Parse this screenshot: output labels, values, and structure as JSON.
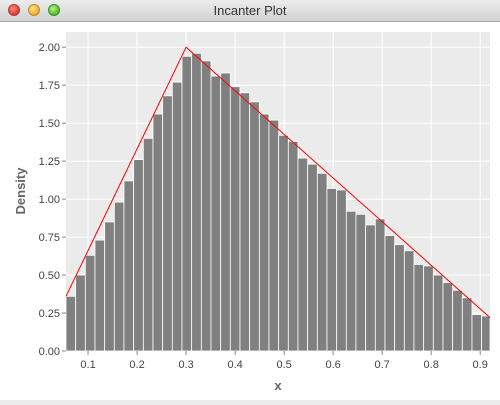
{
  "window": {
    "title": "Incanter Plot"
  },
  "colors": {
    "plot_background": "#ebebeb",
    "grid": "#ffffff",
    "bar_fill": "#808080",
    "bar_stroke": "#ffffff",
    "density_line": "#ff0000",
    "tick_text": "#444444",
    "axis_label": "#666666"
  },
  "chart_data": {
    "type": "bar",
    "title": "",
    "xlabel": "x",
    "ylabel": "Density",
    "xlim": [
      0.055,
      0.92
    ],
    "ylim": [
      0,
      2.1
    ],
    "grid": true,
    "x_ticks": [
      0.1,
      0.2,
      0.3,
      0.4,
      0.5,
      0.6,
      0.7,
      0.8,
      0.9
    ],
    "x_tick_labels": [
      "0.1",
      "0.2",
      "0.3",
      "0.4",
      "0.5",
      "0.6",
      "0.7",
      "0.8",
      "0.9"
    ],
    "y_ticks": [
      0,
      0.25,
      0.5,
      0.75,
      1.0,
      1.25,
      1.5,
      1.75,
      2.0
    ],
    "y_tick_labels": [
      "0.00",
      "0.25",
      "0.50",
      "0.75",
      "1.00",
      "1.25",
      "1.50",
      "1.75",
      "2.00"
    ],
    "histogram": {
      "bin_start": 0.055,
      "bin_width": 0.01972,
      "values": [
        0.36,
        0.5,
        0.63,
        0.73,
        0.85,
        0.98,
        1.12,
        1.26,
        1.4,
        1.56,
        1.68,
        1.77,
        1.94,
        1.96,
        1.91,
        1.81,
        1.83,
        1.74,
        1.7,
        1.64,
        1.56,
        1.52,
        1.42,
        1.38,
        1.27,
        1.23,
        1.17,
        1.07,
        1.06,
        0.92,
        0.9,
        0.83,
        0.87,
        0.76,
        0.7,
        0.66,
        0.57,
        0.56,
        0.5,
        0.45,
        0.4,
        0.35,
        0.24,
        0.23
      ]
    },
    "series": [
      {
        "type": "line",
        "x": [
          0.055,
          0.3,
          0.92
        ],
        "y": [
          0.36,
          2.0,
          0.22
        ]
      }
    ]
  }
}
